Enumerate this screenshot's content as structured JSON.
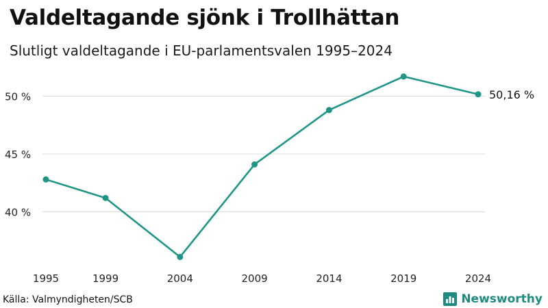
{
  "header": {
    "title": "Valdeltagande sjönk i Trollhättan",
    "subtitle": "Slutligt valdeltagande i EU-parlamentsvalen 1995–2024"
  },
  "footer": {
    "source": "Källa: Valmyndigheten/SCB",
    "brand": "Newsworthy",
    "brand_icon": "newsworthy-logo-icon"
  },
  "colors": {
    "series": "#1e9585",
    "grid": "#dddddd",
    "brand": "#1e8a80"
  },
  "chart_data": {
    "type": "line",
    "title": "Valdeltagande sjönk i Trollhättan",
    "subtitle": "Slutligt valdeltagande i EU-parlamentsvalen 1995–2024",
    "x": [
      1995,
      1999,
      2004,
      2009,
      2014,
      2019,
      2024
    ],
    "series": [
      {
        "values": [
          42.8,
          41.2,
          36.1,
          44.1,
          48.8,
          51.7,
          50.16
        ]
      }
    ],
    "ylim": [
      35.5,
      52.6
    ],
    "yticks": [
      40,
      45,
      50
    ],
    "ytick_labels": [
      "40 %",
      "45 %",
      "50 %"
    ],
    "xtick_labels": [
      "1995",
      "1999",
      "2004",
      "2009",
      "2014",
      "2019",
      "2024"
    ],
    "annotations": [
      {
        "x": 2024,
        "text": "50,16 %"
      }
    ],
    "grid": true,
    "legend": "none"
  }
}
